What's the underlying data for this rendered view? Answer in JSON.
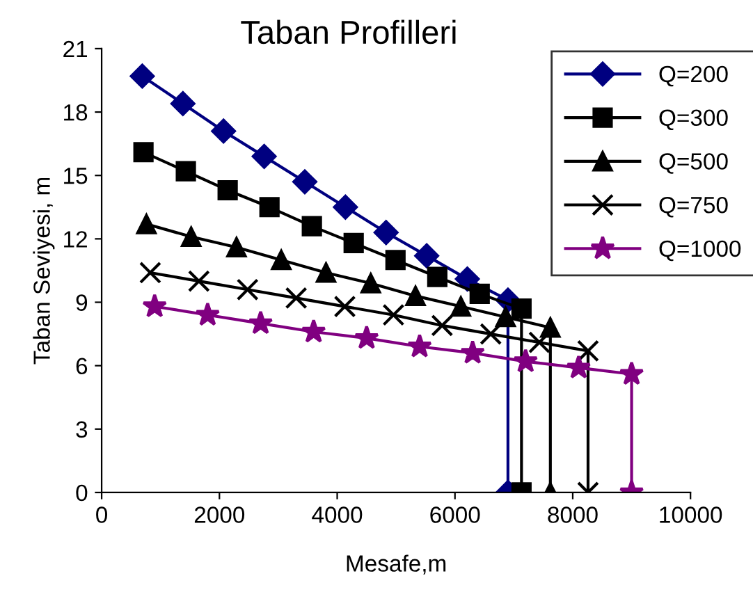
{
  "chart_data": {
    "type": "line",
    "title": "Taban Profilleri",
    "xlabel": "Mesafe,m",
    "ylabel": "Taban Seviyesi, m",
    "xlim": [
      0,
      10000
    ],
    "xticks": [
      0,
      2000,
      4000,
      6000,
      8000,
      10000
    ],
    "ylim": [
      0,
      21
    ],
    "yticks": [
      0,
      3,
      6,
      9,
      12,
      15,
      18,
      21
    ],
    "grid": false,
    "legend": "top right",
    "line_style": "solid",
    "series": [
      {
        "name": "Q=200",
        "color": "#000080",
        "marker": "diamond",
        "x": [
          690,
          1380,
          2070,
          2760,
          3450,
          4140,
          4830,
          5520,
          6210,
          6900,
          6900
        ],
        "values": [
          19.7,
          18.4,
          17.1,
          15.9,
          14.7,
          13.5,
          12.3,
          11.2,
          10.1,
          9.1,
          0
        ]
      },
      {
        "name": "Q=300",
        "color": "#000000",
        "marker": "square",
        "x": [
          710,
          1430,
          2140,
          2850,
          3570,
          4280,
          4990,
          5700,
          6420,
          7130,
          7130
        ],
        "values": [
          16.1,
          15.2,
          14.3,
          13.5,
          12.6,
          11.8,
          11.0,
          10.2,
          9.4,
          8.7,
          0
        ]
      },
      {
        "name": "Q=500",
        "color": "#000000",
        "marker": "triangle",
        "x": [
          760,
          1520,
          2290,
          3050,
          3810,
          4570,
          5330,
          6100,
          6860,
          7620,
          7620
        ],
        "values": [
          12.7,
          12.1,
          11.6,
          11.0,
          10.4,
          9.9,
          9.3,
          8.8,
          8.3,
          7.8,
          0
        ]
      },
      {
        "name": "Q=750",
        "color": "#000000",
        "marker": "cross",
        "x": [
          826,
          1652,
          2478,
          3304,
          4130,
          4956,
          5782,
          6608,
          7434,
          8260,
          8260
        ],
        "values": [
          10.4,
          10.0,
          9.6,
          9.2,
          8.8,
          8.4,
          7.9,
          7.5,
          7.1,
          6.7,
          0
        ]
      },
      {
        "name": "Q=1000",
        "color": "#800080",
        "marker": "star",
        "x": [
          900,
          1800,
          2700,
          3600,
          4500,
          5400,
          6300,
          7200,
          8100,
          9000,
          9000
        ],
        "values": [
          8.8,
          8.4,
          8.0,
          7.6,
          7.3,
          6.9,
          6.6,
          6.2,
          5.9,
          5.6,
          0
        ]
      }
    ]
  }
}
